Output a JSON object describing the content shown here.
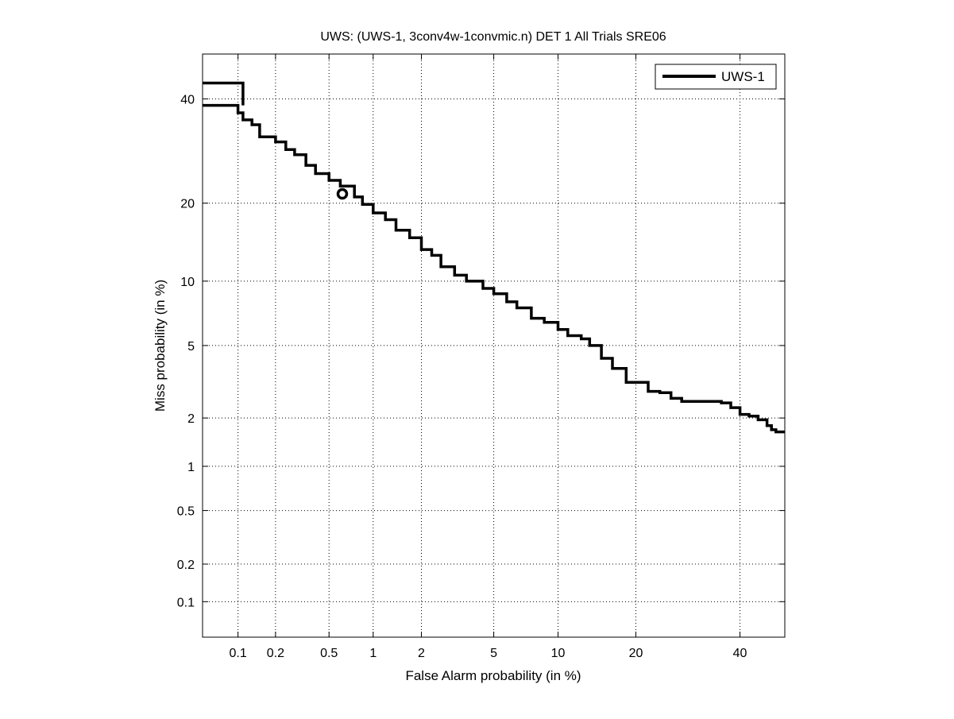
{
  "chart_data": {
    "type": "line",
    "scale": "normal-deviate (DET)",
    "title": "UWS: (UWS-1, 3conv4w-1convmic.n) DET 1 All Trials SRE06",
    "xlabel": "False Alarm probability (in %)",
    "ylabel": "Miss probability (in %)",
    "xlim": [
      0.05,
      50
    ],
    "ylim": [
      0.05,
      50
    ],
    "xticks": [
      0.1,
      0.2,
      0.5,
      1,
      2,
      5,
      10,
      20,
      40
    ],
    "xtick_labels": [
      "0.1",
      "0.2",
      "0.5",
      "1",
      "2",
      "5",
      "10",
      "20",
      "40"
    ],
    "yticks": [
      0.1,
      0.2,
      0.5,
      1,
      2,
      5,
      10,
      20,
      40
    ],
    "ytick_labels": [
      "0.1",
      "0.2",
      "0.5",
      "1",
      "2",
      "5",
      "10",
      "20",
      "40"
    ],
    "grid": true,
    "legend_placement": "top-right",
    "color": "#000000",
    "series": [
      {
        "name": "UWS-1",
        "segments": [
          [
            [
              0.05,
              43.5
            ],
            [
              0.11,
              43.5
            ],
            [
              0.11,
              38.6
            ]
          ],
          [
            [
              0.05,
              38.6
            ],
            [
              0.09,
              38.6
            ],
            [
              0.1,
              37
            ],
            [
              0.11,
              35.5
            ],
            [
              0.13,
              34.5
            ],
            [
              0.15,
              32
            ],
            [
              0.2,
              31
            ],
            [
              0.24,
              29.5
            ],
            [
              0.28,
              28.5
            ],
            [
              0.34,
              26.5
            ],
            [
              0.4,
              25
            ],
            [
              0.5,
              23.8
            ],
            [
              0.6,
              22.8
            ],
            [
              0.75,
              21
            ],
            [
              0.85,
              19.8
            ],
            [
              1,
              18.5
            ],
            [
              1.2,
              17.5
            ],
            [
              1.4,
              16
            ],
            [
              1.7,
              15
            ],
            [
              2,
              13.5
            ],
            [
              2.3,
              12.8
            ],
            [
              2.6,
              11.5
            ],
            [
              3.1,
              10.6
            ],
            [
              3.6,
              10
            ],
            [
              4.4,
              9.3
            ],
            [
              5,
              8.8
            ],
            [
              5.8,
              8.1
            ],
            [
              6.5,
              7.6
            ],
            [
              7.6,
              6.8
            ],
            [
              8.7,
              6.5
            ],
            [
              10,
              6
            ],
            [
              11,
              5.6
            ],
            [
              12.5,
              5.4
            ],
            [
              13.5,
              5
            ],
            [
              15,
              4.3
            ],
            [
              16.5,
              3.8
            ],
            [
              18.5,
              3.2
            ],
            [
              20,
              3.2
            ],
            [
              22,
              2.85
            ],
            [
              24,
              2.8
            ],
            [
              26,
              2.6
            ],
            [
              28,
              2.5
            ],
            [
              33,
              2.5
            ],
            [
              36,
              2.45
            ],
            [
              38,
              2.3
            ],
            [
              40,
              2.1
            ],
            [
              42,
              2.05
            ],
            [
              44,
              1.95
            ],
            [
              46,
              1.8
            ],
            [
              47,
              1.7
            ],
            [
              48,
              1.65
            ],
            [
              50,
              1.65
            ]
          ]
        ]
      }
    ],
    "markers": [
      {
        "series": "UWS-1",
        "shape": "circle",
        "x": 0.62,
        "y": 21.5
      }
    ]
  }
}
